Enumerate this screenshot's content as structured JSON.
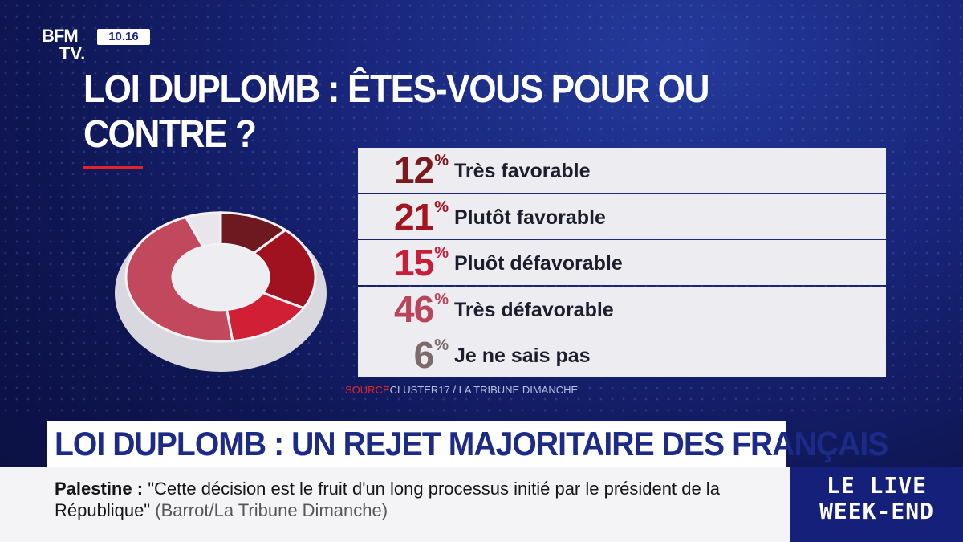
{
  "header": {
    "logo_top": "BFM",
    "logo_bottom": "TV.",
    "clock": "10.16"
  },
  "title": "LOI DUPLOMB : ÊTES-VOUS POUR OU CONTRE ?",
  "chart_data": {
    "type": "pie",
    "title": "LOI DUPLOMB : ÊTES-VOUS POUR OU CONTRE ?",
    "unit": "%",
    "categories": [
      "Très favorable",
      "Plutôt favorable",
      "Pluôt défavorable",
      "Très défavorable",
      "Je ne sais pas"
    ],
    "values": [
      12,
      21,
      15,
      46,
      6
    ],
    "colors": [
      "#7a1a1f",
      "#a3151f",
      "#c81e3a",
      "#b8455a",
      "#7d6a6c"
    ],
    "donut_colors": [
      "#6e1820",
      "#a11220",
      "#d11f35",
      "#c2485e",
      "#e8e6ea"
    ],
    "rows": [
      {
        "value": "12",
        "sign": "%",
        "label": "Très favorable"
      },
      {
        "value": "21",
        "sign": "%",
        "label": "Plutôt favorable"
      },
      {
        "value": "15",
        "sign": "%",
        "label": "Pluôt défavorable"
      },
      {
        "value": "46",
        "sign": "%",
        "label": "Très défavorable"
      },
      {
        "value": "6",
        "sign": "%",
        "label": "Je ne sais pas"
      }
    ]
  },
  "source": {
    "prefix": "SOURCE",
    "text": "CLUSTER17 / LA TRIBUNE DIMANCHE"
  },
  "banner": "LOI DUPLOMB : UN REJET MAJORITAIRE DES FRANÇAIS",
  "ticker": {
    "topic": "Palestine",
    "separator": ":",
    "quote": "\"Cette décision est le fruit d'un long processus initié par le président de la République\"",
    "attribution": "(Barrot/La Tribune Dimanche)"
  },
  "live": {
    "line1": "LE LIVE",
    "line2": "WEEK-END"
  }
}
